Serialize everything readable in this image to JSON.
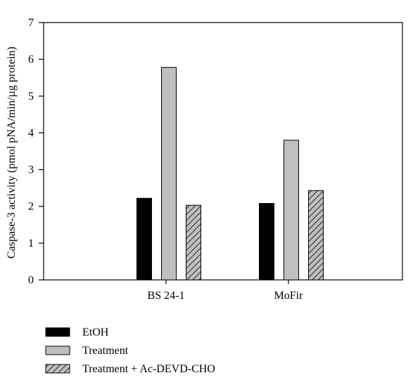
{
  "chart_data": {
    "type": "bar",
    "title": "",
    "xlabel": "",
    "ylabel": "Caspase-3 activity (pmol pNA/min/µg protein)",
    "ylim": [
      0,
      7
    ],
    "yticks": [
      0,
      1,
      2,
      3,
      4,
      5,
      6,
      7
    ],
    "categories": [
      "BS 24-1",
      "MoFir"
    ],
    "series": [
      {
        "name": "EtOH",
        "values": [
          2.22,
          2.08
        ],
        "color": "#000000",
        "pattern": "solid"
      },
      {
        "name": "Treatment",
        "values": [
          5.78,
          3.8
        ],
        "color": "#bfbfbf",
        "pattern": "solid"
      },
      {
        "name": "Treatment + Ac-DEVD-CHO",
        "values": [
          2.03,
          2.43
        ],
        "color": "#bfbfbf",
        "pattern": "hatched"
      }
    ],
    "grid": false,
    "legend_position": "bottom-left"
  }
}
